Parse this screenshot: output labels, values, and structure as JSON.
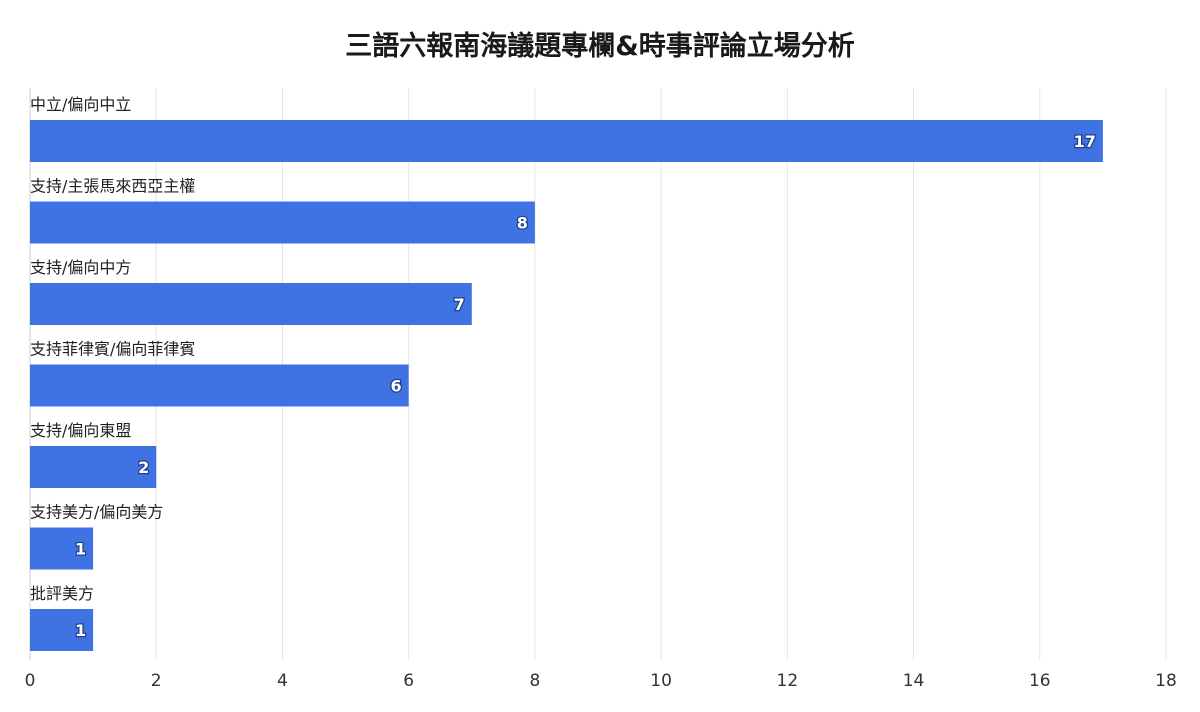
{
  "chart_data": {
    "type": "bar",
    "orientation": "horizontal",
    "title": "三語六報南海議題專欄&時事評論立場分析",
    "xlabel": "",
    "ylabel": "",
    "categories": [
      "中立/偏向中立",
      "支持/主張馬來西亞主權",
      "支持/偏向中方",
      "支持菲律賓/偏向菲律賓",
      "支持/偏向東盟",
      "支持美方/偏向美方",
      "批評美方"
    ],
    "values": [
      17,
      8,
      7,
      6,
      2,
      1,
      1
    ],
    "xlim": [
      0,
      18
    ],
    "xticks": [
      0,
      2,
      4,
      6,
      8,
      10,
      12,
      14,
      16,
      18
    ],
    "grid": true,
    "bar_color": "#3f73e3"
  }
}
